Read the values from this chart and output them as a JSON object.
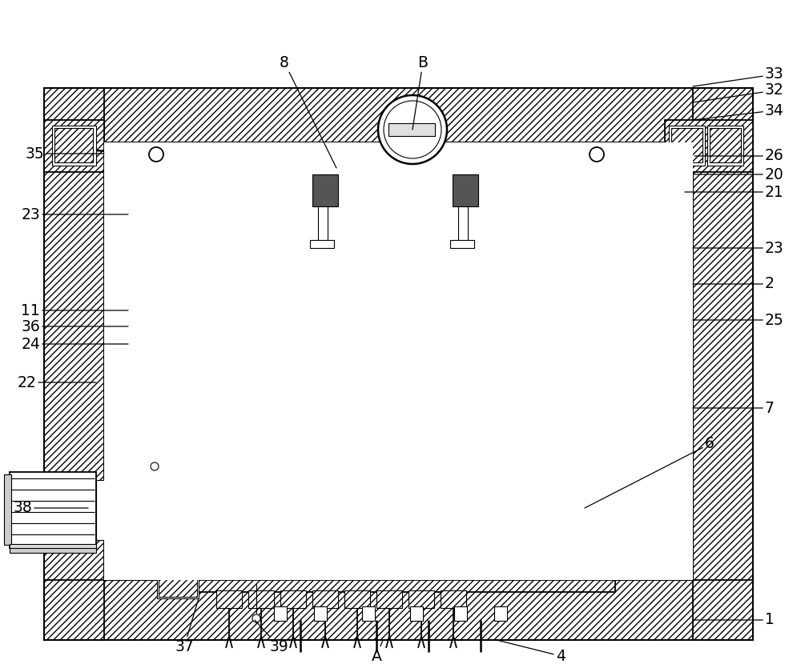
{
  "bg_color": "#ffffff",
  "line_color": "#000000",
  "fig_w": 10.0,
  "fig_h": 8.4,
  "dpi": 100,
  "annotations_right": [
    [
      "33",
      865,
      108,
      955,
      93
    ],
    [
      "32",
      865,
      128,
      955,
      113
    ],
    [
      "34",
      865,
      150,
      955,
      138
    ],
    [
      "26",
      867,
      195,
      955,
      195
    ],
    [
      "20",
      867,
      218,
      955,
      218
    ],
    [
      "21",
      855,
      240,
      955,
      240
    ],
    [
      "23",
      865,
      310,
      955,
      310
    ],
    [
      "2",
      865,
      355,
      955,
      355
    ],
    [
      "25",
      865,
      400,
      955,
      400
    ],
    [
      "7",
      865,
      510,
      955,
      510
    ],
    [
      "6",
      730,
      635,
      880,
      555
    ],
    [
      "1",
      865,
      775,
      955,
      775
    ]
  ],
  "annotations_left": [
    [
      "35",
      130,
      192,
      55,
      192
    ],
    [
      "23",
      160,
      268,
      50,
      268
    ],
    [
      "24",
      160,
      430,
      50,
      430
    ],
    [
      "11",
      160,
      388,
      50,
      388
    ],
    [
      "36",
      160,
      408,
      50,
      408
    ],
    [
      "22",
      120,
      478,
      45,
      478
    ],
    [
      "38",
      110,
      635,
      40,
      635
    ]
  ],
  "annotations_top": [
    [
      "8",
      420,
      210,
      355,
      78
    ],
    [
      "B",
      515,
      162,
      528,
      78
    ]
  ],
  "annotations_bot": [
    [
      "37",
      248,
      748,
      230,
      808
    ],
    [
      "39",
      318,
      775,
      348,
      808
    ],
    [
      "A",
      478,
      800,
      470,
      820
    ],
    [
      "4",
      620,
      800,
      700,
      820
    ]
  ]
}
